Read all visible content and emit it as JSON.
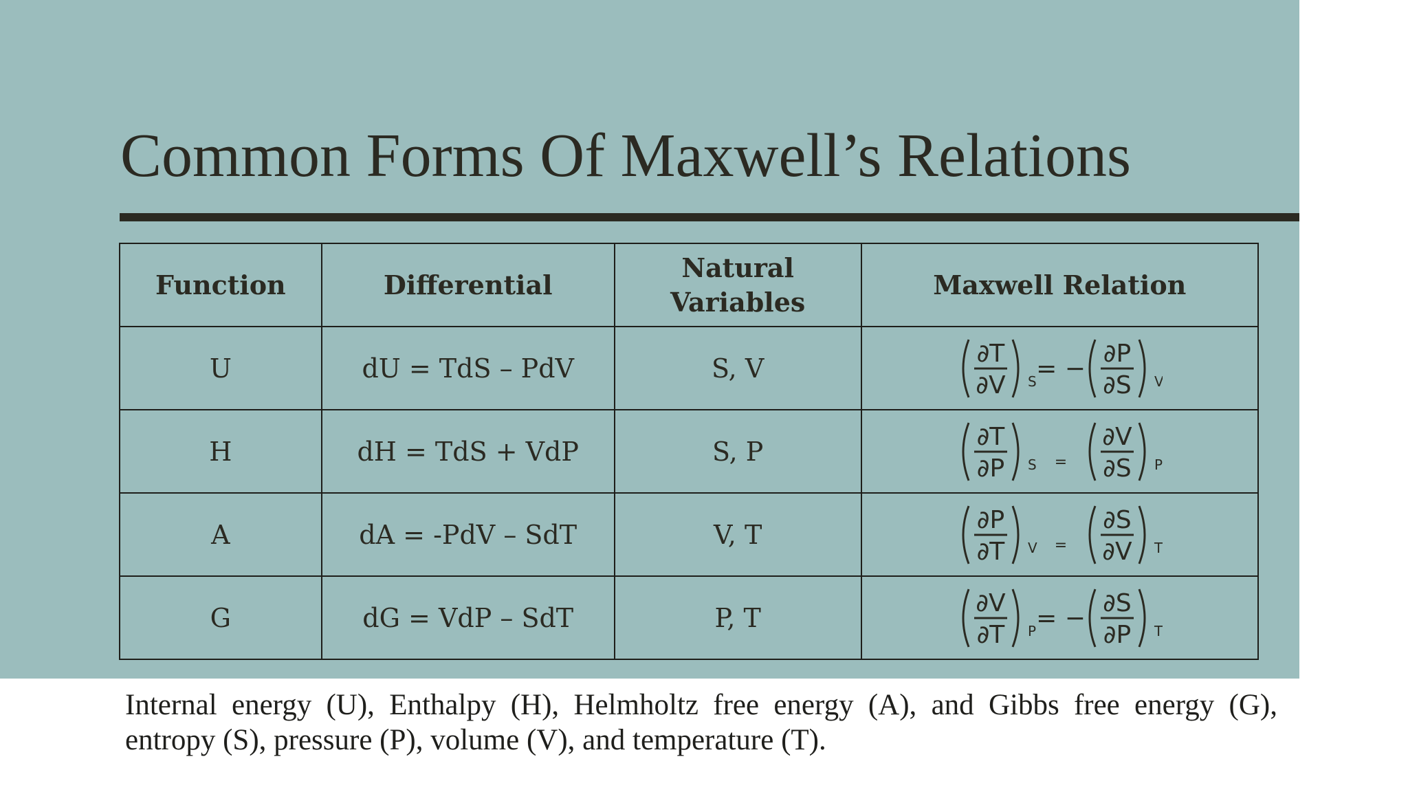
{
  "title": "Common Forms Of Maxwell’s Relations",
  "table": {
    "headers": {
      "function": "Function",
      "differential": "Differential",
      "natural_variables_line1": "Natural",
      "natural_variables_line2": "Variables",
      "maxwell_relation": "Maxwell Relation"
    },
    "rows": [
      {
        "function": "U",
        "differential": "dU = TdS – PdV",
        "natural_variables": "S, V",
        "relation": {
          "lhs_num": "∂T",
          "lhs_den": "∂V",
          "lhs_sub": "S",
          "op": "= −",
          "rhs_num": "∂P",
          "rhs_den": "∂S",
          "rhs_sub": "V"
        }
      },
      {
        "function": "H",
        "differential": "dH = TdS + VdP",
        "natural_variables": "S, P",
        "relation": {
          "lhs_num": "∂T",
          "lhs_den": "∂P",
          "lhs_sub": "S",
          "op": "=",
          "rhs_num": "∂V",
          "rhs_den": "∂S",
          "rhs_sub": "P"
        }
      },
      {
        "function": "A",
        "differential": "dA = -PdV – SdT",
        "natural_variables": "V, T",
        "relation": {
          "lhs_num": "∂P",
          "lhs_den": "∂T",
          "lhs_sub": "V",
          "op": "=",
          "rhs_num": "∂S",
          "rhs_den": "∂V",
          "rhs_sub": "T"
        }
      },
      {
        "function": "G",
        "differential": "dG = VdP – SdT",
        "natural_variables": "P, T",
        "relation": {
          "lhs_num": "∂V",
          "lhs_den": "∂T",
          "lhs_sub": "P",
          "op": "= −",
          "rhs_num": "∂S",
          "rhs_den": "∂P",
          "rhs_sub": "T"
        }
      }
    ]
  },
  "caption": "Internal energy (U), Enthalpy (H), Helmholtz free energy (A), and Gibbs free energy (G), entropy (S), pressure (P), volume (V), and temperature (T).",
  "colors": {
    "slide_background": "#9bbdbd",
    "text": "#2b2a22",
    "rule": "#2b2a22",
    "page_background": "#ffffff"
  }
}
